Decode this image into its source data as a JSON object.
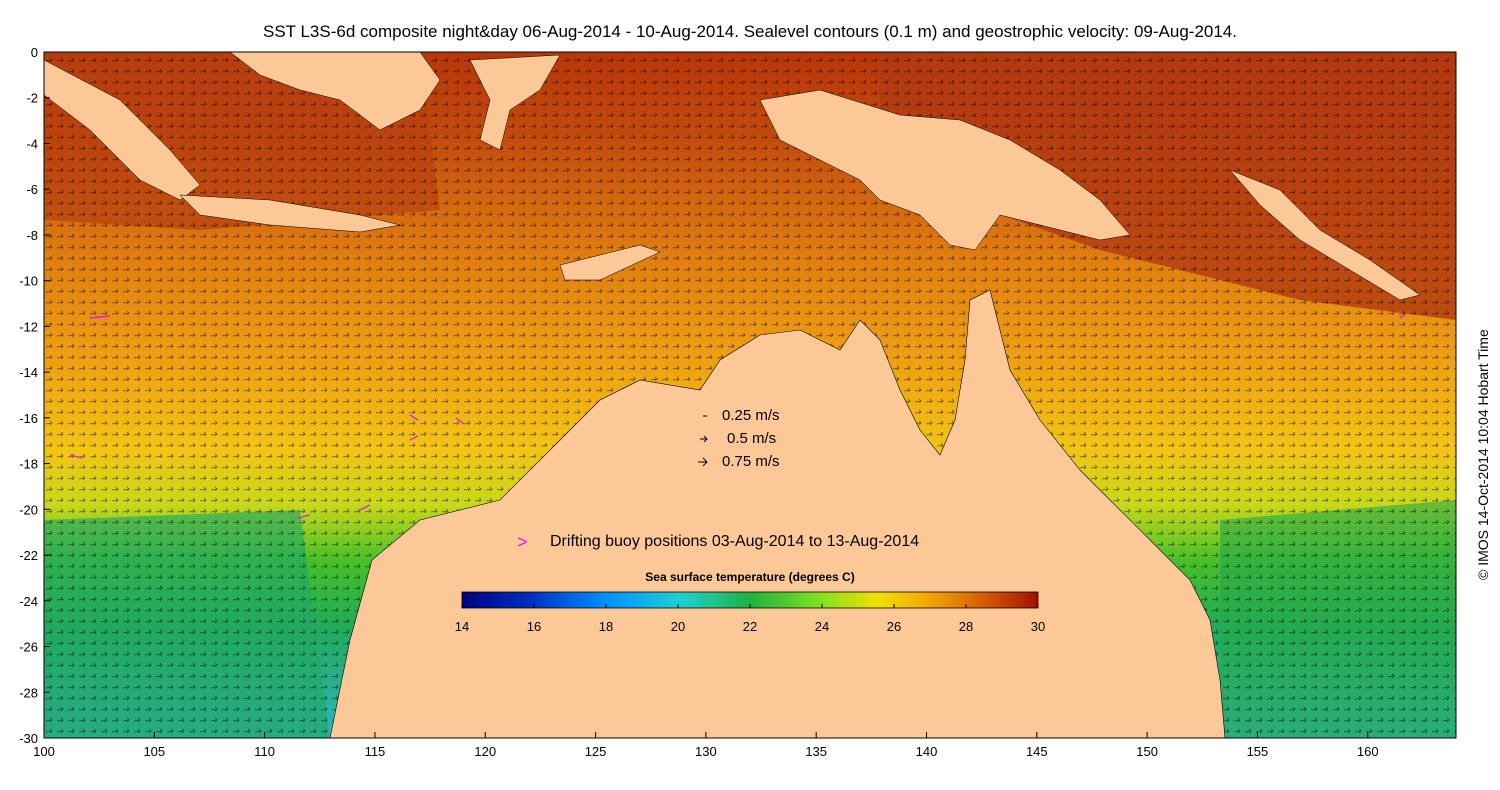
{
  "title": "SST L3S-6d composite night&day 06-Aug-2014 - 10-Aug-2014. Sealevel contours (0.1 m) and geostrophic velocity: 09-Aug-2014.",
  "axes": {
    "x_ticks": [
      "100",
      "105",
      "110",
      "115",
      "120",
      "125",
      "130",
      "135",
      "140",
      "145",
      "150",
      "155",
      "160"
    ],
    "y_ticks": [
      "0",
      "-2",
      "-4",
      "-6",
      "-8",
      "-10",
      "-12",
      "-14",
      "-16",
      "-18",
      "-20",
      "-22",
      "-24",
      "-26",
      "-28",
      "-30"
    ],
    "xlim": [
      100,
      164
    ],
    "ylim": [
      -30,
      0
    ]
  },
  "legend": {
    "velocity_scale": [
      "0.25 m/s",
      "0.5 m/s",
      "0.75 m/s"
    ],
    "buoy_marker": ">",
    "buoy_label": "Drifting buoy positions 03-Aug-2014 to 13-Aug-2014"
  },
  "colorbar": {
    "title": "Sea surface temperature (degrees C)",
    "ticks": [
      "14",
      "16",
      "18",
      "20",
      "22",
      "24",
      "26",
      "28",
      "30"
    ],
    "range": [
      14,
      30
    ]
  },
  "copyright": "© IMOS 14-Oct-2014 10:04 Hobart Time",
  "colors": {
    "land": "#fdc898",
    "buoy": "#e020e0",
    "warm": "#b33a0a",
    "cool": "#1faa4a"
  }
}
